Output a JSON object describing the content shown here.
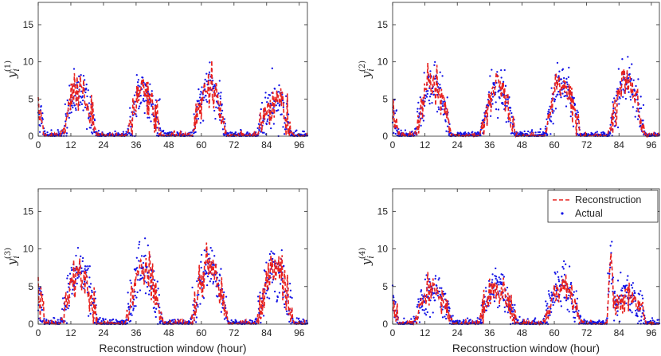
{
  "chart_data": [
    {
      "type": "line",
      "ylabel_base": "y",
      "ylabel_sub": "i",
      "ylabel_sup": "(1)",
      "xlabel": "",
      "xlim": [
        0,
        99
      ],
      "ylim": [
        0,
        18
      ],
      "xticks": [
        0,
        12,
        24,
        36,
        48,
        60,
        72,
        84,
        96
      ],
      "yticks": [
        0,
        5,
        10,
        15
      ],
      "series": [
        {
          "name": "Reconstruction",
          "color": "#e8221e",
          "style": "dashed"
        },
        {
          "name": "Actual",
          "color": "#1414e6",
          "style": "dots"
        }
      ],
      "profile": {
        "start_level": 3.6,
        "peaks": [
          [
            15,
            6.3,
            5.5
          ],
          [
            39,
            6.0,
            5.5
          ],
          [
            63,
            7.0,
            5.5
          ],
          [
            87,
            4.8,
            5.5
          ]
        ],
        "noise": 1.6,
        "seed": 11
      }
    },
    {
      "type": "line",
      "ylabel_base": "y",
      "ylabel_sub": "i",
      "ylabel_sup": "(2)",
      "xlabel": "",
      "xlim": [
        0,
        99
      ],
      "ylim": [
        0,
        18
      ],
      "xticks": [
        0,
        12,
        24,
        36,
        48,
        60,
        72,
        84,
        96
      ],
      "yticks": [
        0,
        5,
        10,
        15
      ],
      "series": [
        {
          "name": "Reconstruction",
          "color": "#e8221e",
          "style": "dashed"
        },
        {
          "name": "Actual",
          "color": "#1414e6",
          "style": "dots"
        }
      ],
      "profile": {
        "start_level": 3.5,
        "peaks": [
          [
            15,
            7.0,
            5.8
          ],
          [
            39,
            6.6,
            5.8
          ],
          [
            63,
            7.0,
            5.8
          ],
          [
            87,
            7.2,
            5.8
          ]
        ],
        "noise": 1.5,
        "seed": 23
      }
    },
    {
      "type": "line",
      "ylabel_base": "y",
      "ylabel_sub": "i",
      "ylabel_sup": "(3)",
      "xlabel": "Reconstruction window (hour)",
      "xlim": [
        0,
        99
      ],
      "ylim": [
        0,
        18
      ],
      "xticks": [
        0,
        12,
        24,
        36,
        48,
        60,
        72,
        84,
        96
      ],
      "yticks": [
        0,
        5,
        10,
        15
      ],
      "series": [
        {
          "name": "Reconstruction",
          "color": "#e8221e",
          "style": "dashed"
        },
        {
          "name": "Actual",
          "color": "#1414e6",
          "style": "dots"
        }
      ],
      "profile": {
        "start_level": 3.7,
        "peaks": [
          [
            15,
            7.2,
            6.0
          ],
          [
            39,
            7.8,
            6.0
          ],
          [
            63,
            8.0,
            6.0
          ],
          [
            87,
            7.4,
            6.0
          ]
        ],
        "noise": 1.7,
        "seed": 37
      }
    },
    {
      "type": "line",
      "ylabel_base": "y",
      "ylabel_sub": "i",
      "ylabel_sup": "(4)",
      "xlabel": "Reconstruction window (hour)",
      "xlim": [
        0,
        99
      ],
      "ylim": [
        0,
        18
      ],
      "xticks": [
        0,
        12,
        24,
        36,
        48,
        60,
        72,
        84,
        96
      ],
      "yticks": [
        0,
        5,
        10,
        15
      ],
      "series": [
        {
          "name": "Reconstruction",
          "color": "#e8221e",
          "style": "dashed"
        },
        {
          "name": "Actual",
          "color": "#1414e6",
          "style": "dots"
        }
      ],
      "profile": {
        "start_level": 3.3,
        "peaks": [
          [
            15,
            4.8,
            6.5
          ],
          [
            39,
            5.0,
            6.5
          ],
          [
            63,
            5.0,
            6.5
          ],
          [
            87,
            4.2,
            6.5
          ]
        ],
        "noise": 1.3,
        "seed": 53,
        "spike": [
          81,
          10.0
        ]
      },
      "legend": {
        "placement": "top-right",
        "entries": [
          "Reconstruction",
          "Actual"
        ]
      }
    }
  ]
}
